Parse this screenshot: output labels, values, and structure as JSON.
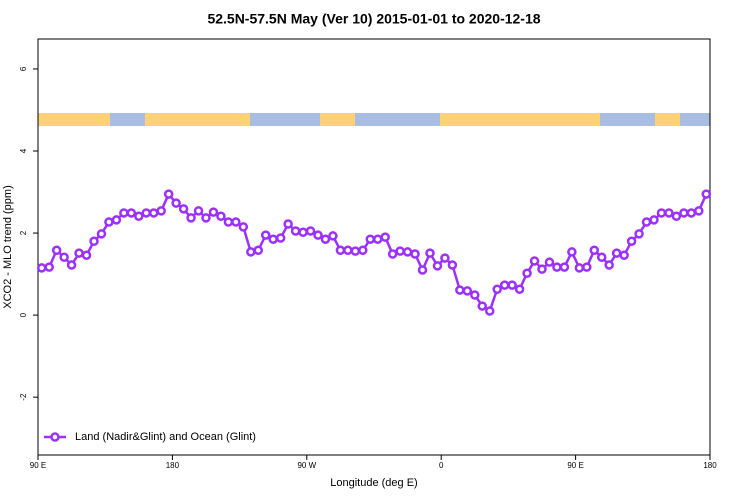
{
  "chart_data": {
    "type": "line",
    "title": "52.5N-57.5N May (Ver 10)   2015-01-01 to 2020-12-18",
    "x_label": "Longitude (deg E)",
    "y_label": "XCO2 - MLO trend (ppm)",
    "xlim": [
      90,
      540
    ],
    "ylim": [
      -3.41,
      6.73
    ],
    "xticks": [
      {
        "value": 90,
        "label": "90 E"
      },
      180,
      {
        "value": 270,
        "label": "90 W"
      },
      {
        "value": 360,
        "label": "0"
      },
      {
        "value": 450,
        "label": "90 E"
      },
      {
        "value": 540,
        "label": "180"
      }
    ],
    "yticks": [
      -2,
      0,
      2,
      4,
      6
    ],
    "legend_position": "bottom-left",
    "x": [
      92.5,
      97.5,
      102.5,
      107.5,
      112.5,
      117.5,
      122.5,
      127.5,
      132.5,
      137.5,
      142.5,
      147.5,
      152.5,
      157.5,
      162.5,
      167.5,
      172.5,
      177.5,
      182.5,
      187.5,
      192.5,
      197.5,
      202.5,
      207.5,
      212.5,
      217.5,
      222.5,
      227.5,
      232.5,
      237.5,
      242.5,
      247.5,
      252.5,
      257.5,
      262.5,
      267.5,
      272.5,
      277.5,
      282.5,
      287.5,
      292.5,
      297.5,
      302.5,
      307.5,
      312.5,
      317.5,
      322.5,
      327.5,
      332.5,
      337.5,
      342.5,
      347.5,
      352.5,
      357.5,
      362.5,
      367.5,
      372.5,
      377.5,
      382.5,
      387.5,
      392.5,
      397.5,
      402.5,
      407.5,
      412.5,
      417.5,
      422.5,
      427.5,
      432.5,
      437.5,
      442.5,
      447.5,
      452.5,
      457.5,
      462.5,
      467.5,
      472.5,
      477.5,
      482.5,
      487.5,
      492.5,
      497.5,
      502.5,
      507.5,
      512.5,
      517.5,
      522.5,
      527.5,
      532.5,
      537.5
    ],
    "series": [
      {
        "name": "Land (Nadir&Glint) and Ocean (Glint)",
        "color": "#9b30ff",
        "values": [
          1.15,
          1.17,
          1.58,
          1.41,
          1.22,
          1.51,
          1.46,
          1.8,
          1.98,
          2.27,
          2.32,
          2.49,
          2.49,
          2.41,
          2.49,
          2.49,
          2.54,
          2.95,
          2.73,
          2.59,
          2.37,
          2.54,
          2.37,
          2.51,
          2.41,
          2.27,
          2.27,
          2.15,
          1.54,
          1.58,
          1.95,
          1.85,
          1.88,
          2.22,
          2.05,
          2.02,
          2.05,
          1.95,
          1.85,
          1.93,
          1.58,
          1.58,
          1.56,
          1.58,
          1.85,
          1.85,
          1.9,
          1.49,
          1.56,
          1.54,
          1.49,
          1.1,
          1.51,
          1.2,
          1.39,
          1.22,
          0.61,
          0.59,
          0.49,
          0.22,
          0.1,
          0.63,
          0.73,
          0.73,
          0.63,
          1.02,
          1.32,
          1.12,
          1.29,
          1.17,
          1.17,
          1.54,
          1.15,
          1.17,
          1.58,
          1.41,
          1.22,
          1.51,
          1.46,
          1.8,
          1.98,
          2.27,
          2.32,
          2.49,
          2.49,
          2.41,
          2.49,
          2.49,
          2.54,
          2.95
        ]
      }
    ]
  }
}
